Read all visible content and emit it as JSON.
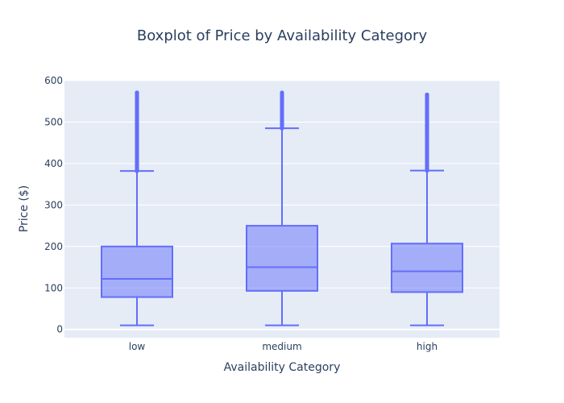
{
  "chart_data": {
    "type": "box",
    "title": "Boxplot of Price by Availability Category",
    "xlabel": "Availability Category",
    "ylabel": "Price ($)",
    "ylim": [
      -20,
      600
    ],
    "yticks": [
      0,
      100,
      200,
      300,
      400,
      500,
      600
    ],
    "categories": [
      "low",
      "medium",
      "high"
    ],
    "boxes": [
      {
        "category": "low",
        "min": 10,
        "q1": 78,
        "median": 122,
        "q3": 200,
        "max": 382,
        "outliers_range": [
          382,
          571
        ]
      },
      {
        "category": "medium",
        "min": 10,
        "q1": 93,
        "median": 150,
        "q3": 250,
        "max": 485,
        "outliers_range": [
          485,
          571
        ]
      },
      {
        "category": "high",
        "min": 10,
        "q1": 90,
        "median": 140,
        "q3": 207,
        "max": 383,
        "outliers_range": [
          383,
          566
        ]
      }
    ],
    "grid": true,
    "colors": {
      "box_line": "#636efa",
      "box_fill": "rgba(99,110,250,0.5)",
      "plot_bg": "#e5ecf6",
      "grid": "#ffffff",
      "text": "#2a3f5f"
    }
  }
}
